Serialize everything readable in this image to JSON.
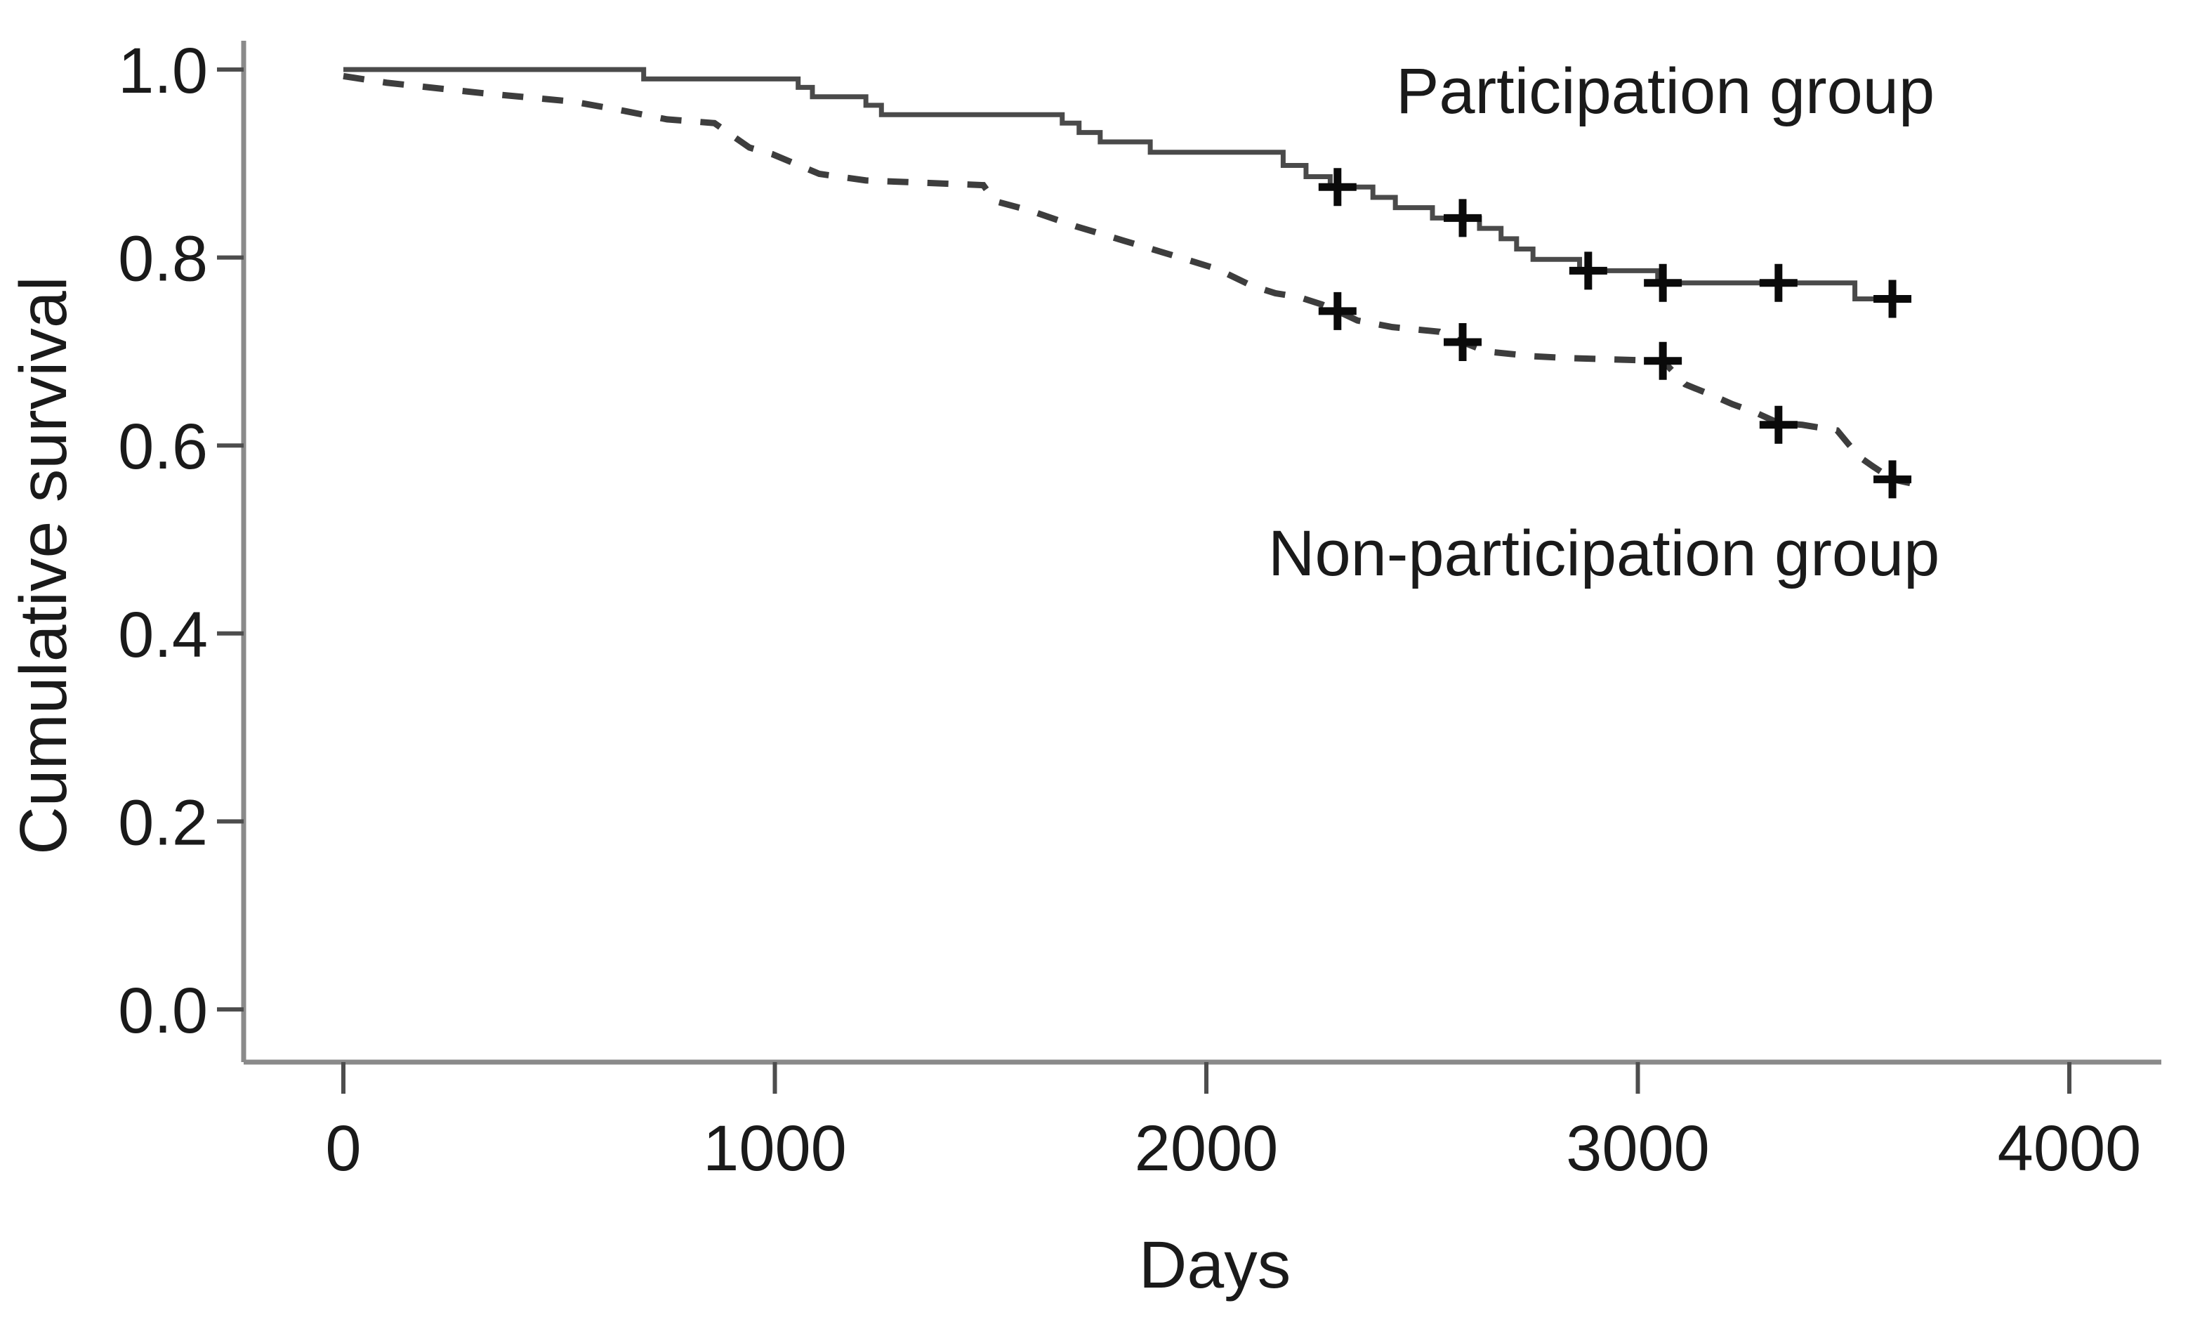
{
  "figure": {
    "background": "#ffffff"
  },
  "chart_data": {
    "type": "line",
    "subtype": "kaplan_meier_step_curves",
    "title": "",
    "xlabel": "Days",
    "ylabel": "Cumulative survival",
    "x_ticks": [
      0,
      1000,
      2000,
      3000,
      4000
    ],
    "y_ticks": [
      0,
      0.2,
      0.4,
      0.6,
      0.8,
      1
    ],
    "xlim": [
      -230,
      4210
    ],
    "ylim": [
      -0.06,
      1.03
    ],
    "grid": false,
    "legend_position": "inline-annotations",
    "colors": {
      "solid_curve": "#4a4a4a",
      "dashed_curve": "#3d3d3d",
      "axis": "#8a8a8a",
      "tick": "#4d4d4d",
      "text": "#1a1a1a",
      "censor": "#0a0a0a"
    },
    "series": [
      {
        "name": "Participation group",
        "style": "solid",
        "draw": "step",
        "end_day": 3631,
        "points": [
          [
            0,
            1.0
          ],
          [
            696,
            0.99
          ],
          [
            1054,
            0.981
          ],
          [
            1087,
            0.971
          ],
          [
            1211,
            0.962
          ],
          [
            1247,
            0.952
          ],
          [
            1666,
            0.943
          ],
          [
            1705,
            0.933
          ],
          [
            1754,
            0.923
          ],
          [
            1870,
            0.912
          ],
          [
            2178,
            0.898
          ],
          [
            2231,
            0.886
          ],
          [
            2287,
            0.875
          ],
          [
            2386,
            0.864
          ],
          [
            2438,
            0.853
          ],
          [
            2524,
            0.842
          ],
          [
            2633,
            0.831
          ],
          [
            2683,
            0.82
          ],
          [
            2719,
            0.809
          ],
          [
            2757,
            0.798
          ],
          [
            2865,
            0.786
          ],
          [
            3046,
            0.773
          ],
          [
            3503,
            0.756
          ]
        ],
        "censors": [
          [
            2304,
            0.875
          ],
          [
            2594,
            0.842
          ],
          [
            2885,
            0.786
          ],
          [
            3058,
            0.773
          ],
          [
            3326,
            0.773
          ],
          [
            3590,
            0.756
          ]
        ]
      },
      {
        "name": "Non-participation group",
        "style": "dashed",
        "draw": "polyline",
        "end_day": 3631,
        "points": [
          [
            0,
            0.993
          ],
          [
            100,
            0.986
          ],
          [
            320,
            0.975
          ],
          [
            530,
            0.966
          ],
          [
            640,
            0.957
          ],
          [
            750,
            0.947
          ],
          [
            860,
            0.943
          ],
          [
            941,
            0.917
          ],
          [
            994,
            0.91
          ],
          [
            1103,
            0.889
          ],
          [
            1211,
            0.882
          ],
          [
            1320,
            0.88
          ],
          [
            1483,
            0.877
          ],
          [
            1510,
            0.86
          ],
          [
            1591,
            0.85
          ],
          [
            1699,
            0.833
          ],
          [
            1808,
            0.818
          ],
          [
            1917,
            0.803
          ],
          [
            2024,
            0.788
          ],
          [
            2105,
            0.77
          ],
          [
            2160,
            0.762
          ],
          [
            2214,
            0.758
          ],
          [
            2268,
            0.75
          ],
          [
            2304,
            0.743
          ],
          [
            2350,
            0.733
          ],
          [
            2431,
            0.726
          ],
          [
            2540,
            0.721
          ],
          [
            2567,
            0.715
          ],
          [
            2594,
            0.71
          ],
          [
            2649,
            0.7
          ],
          [
            2757,
            0.695
          ],
          [
            2838,
            0.693
          ],
          [
            3058,
            0.69
          ],
          [
            3110,
            0.665
          ],
          [
            3164,
            0.655
          ],
          [
            3219,
            0.644
          ],
          [
            3273,
            0.635
          ],
          [
            3326,
            0.624
          ],
          [
            3381,
            0.622
          ],
          [
            3462,
            0.616
          ],
          [
            3489,
            0.601
          ],
          [
            3516,
            0.587
          ],
          [
            3544,
            0.578
          ],
          [
            3590,
            0.564
          ],
          [
            3631,
            0.56
          ]
        ],
        "censors": [
          [
            2304,
            0.743
          ],
          [
            2594,
            0.71
          ],
          [
            3058,
            0.69
          ],
          [
            3326,
            0.622
          ],
          [
            3590,
            0.564
          ]
        ]
      }
    ]
  }
}
